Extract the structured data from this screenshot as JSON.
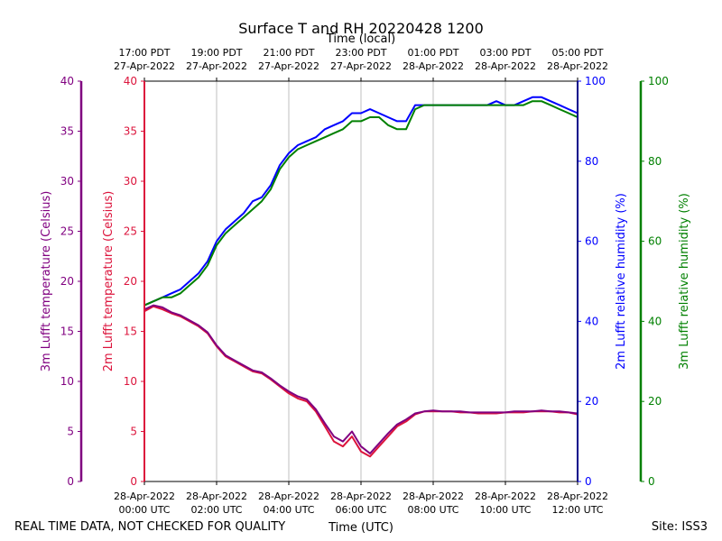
{
  "chart_data": {
    "type": "line",
    "title": "Surface T and RH 20220428 1200",
    "top_axis_label": "Time (local)",
    "xlabel": "Time (UTC)",
    "footer_left": "REAL TIME DATA, NOT CHECKED FOR QUALITY",
    "footer_right": "Site: ISS3",
    "x_range_hours_utc": [
      0,
      12
    ],
    "bottom_ticks": [
      {
        "hour": 0,
        "line1": "28-Apr-2022",
        "line2": "00:00 UTC"
      },
      {
        "hour": 2,
        "line1": "28-Apr-2022",
        "line2": "02:00 UTC"
      },
      {
        "hour": 4,
        "line1": "28-Apr-2022",
        "line2": "04:00 UTC"
      },
      {
        "hour": 6,
        "line1": "28-Apr-2022",
        "line2": "06:00 UTC"
      },
      {
        "hour": 8,
        "line1": "28-Apr-2022",
        "line2": "08:00 UTC"
      },
      {
        "hour": 10,
        "line1": "28-Apr-2022",
        "line2": "10:00 UTC"
      },
      {
        "hour": 12,
        "line1": "28-Apr-2022",
        "line2": "12:00 UTC"
      }
    ],
    "top_ticks": [
      {
        "hour": 0,
        "line1": "17:00 PDT",
        "line2": "27-Apr-2022"
      },
      {
        "hour": 2,
        "line1": "19:00 PDT",
        "line2": "27-Apr-2022"
      },
      {
        "hour": 4,
        "line1": "21:00 PDT",
        "line2": "27-Apr-2022"
      },
      {
        "hour": 6,
        "line1": "23:00 PDT",
        "line2": "27-Apr-2022"
      },
      {
        "hour": 8,
        "line1": "01:00 PDT",
        "line2": "28-Apr-2022"
      },
      {
        "hour": 10,
        "line1": "03:00 PDT",
        "line2": "28-Apr-2022"
      },
      {
        "hour": 12,
        "line1": "05:00 PDT",
        "line2": "28-Apr-2022"
      }
    ],
    "axes": {
      "t3m": {
        "label": "3m Lufft temperature (Celsius)",
        "range": [
          0,
          40
        ],
        "ticks": [
          "0",
          "5",
          "10",
          "15",
          "20",
          "25",
          "30",
          "35",
          "40"
        ],
        "color": "#800080"
      },
      "t2m": {
        "label": "2m Lufft temperature (Celsius)",
        "range": [
          0,
          40
        ],
        "ticks": [
          "0",
          "5",
          "10",
          "15",
          "20",
          "25",
          "30",
          "35",
          "40"
        ],
        "color": "#dc143c"
      },
      "rh2m": {
        "label": "2m Lufft relative humidity (%)",
        "range": [
          0,
          100
        ],
        "ticks": [
          "0",
          "20",
          "40",
          "60",
          "80",
          "100"
        ],
        "color": "#0000ff"
      },
      "rh3m": {
        "label": "3m Lufft relative humidity (%)",
        "range": [
          0,
          100
        ],
        "ticks": [
          "0",
          "20",
          "40",
          "60",
          "80",
          "100"
        ],
        "color": "#008000"
      }
    },
    "series": [
      {
        "name": "2m Lufft relative humidity",
        "axis": "rh2m",
        "color": "#0000ff",
        "x": [
          0,
          0.25,
          0.5,
          0.75,
          1,
          1.25,
          1.5,
          1.75,
          2,
          2.25,
          2.5,
          2.75,
          3,
          3.25,
          3.5,
          3.75,
          4,
          4.25,
          4.5,
          4.75,
          5,
          5.25,
          5.5,
          5.75,
          6,
          6.25,
          6.5,
          6.75,
          7,
          7.25,
          7.5,
          7.75,
          8,
          8.25,
          8.5,
          8.75,
          9,
          9.25,
          9.5,
          9.75,
          10,
          10.25,
          10.5,
          10.75,
          11,
          11.25,
          11.5,
          11.75,
          12
        ],
        "y": [
          44,
          45,
          46,
          47,
          48,
          50,
          52,
          55,
          60,
          63,
          65,
          67,
          70,
          71,
          74,
          79,
          82,
          84,
          85,
          86,
          88,
          89,
          90,
          92,
          92,
          93,
          92,
          91,
          90,
          90,
          94,
          94,
          94,
          94,
          94,
          94,
          94,
          94,
          94,
          95,
          94,
          94,
          95,
          96,
          96,
          95,
          94,
          93,
          92
        ]
      },
      {
        "name": "3m Lufft relative humidity",
        "axis": "rh3m",
        "color": "#008000",
        "x": [
          0,
          0.25,
          0.5,
          0.75,
          1,
          1.25,
          1.5,
          1.75,
          2,
          2.25,
          2.5,
          2.75,
          3,
          3.25,
          3.5,
          3.75,
          4,
          4.25,
          4.5,
          4.75,
          5,
          5.25,
          5.5,
          5.75,
          6,
          6.25,
          6.5,
          6.75,
          7,
          7.25,
          7.5,
          7.75,
          8,
          8.25,
          8.5,
          8.75,
          9,
          9.25,
          9.5,
          9.75,
          10,
          10.25,
          10.5,
          10.75,
          11,
          11.25,
          11.5,
          11.75,
          12
        ],
        "y": [
          44,
          45,
          46,
          46,
          47,
          49,
          51,
          54,
          59,
          62,
          64,
          66,
          68,
          70,
          73,
          78,
          81,
          83,
          84,
          85,
          86,
          87,
          88,
          90,
          90,
          91,
          91,
          89,
          88,
          88,
          93,
          94,
          94,
          94,
          94,
          94,
          94,
          94,
          94,
          94,
          94,
          94,
          94,
          95,
          95,
          94,
          93,
          92,
          91
        ]
      },
      {
        "name": "2m Lufft temperature",
        "axis": "t2m",
        "color": "#dc143c",
        "x": [
          0,
          0.25,
          0.5,
          0.75,
          1,
          1.25,
          1.5,
          1.75,
          2,
          2.25,
          2.5,
          2.75,
          3,
          3.25,
          3.5,
          3.75,
          4,
          4.25,
          4.5,
          4.75,
          5,
          5.25,
          5.5,
          5.75,
          6,
          6.25,
          6.5,
          6.75,
          7,
          7.25,
          7.5,
          7.75,
          8,
          8.25,
          8.5,
          8.75,
          9,
          9.25,
          9.5,
          9.75,
          10,
          10.25,
          10.5,
          10.75,
          11,
          11.25,
          11.5,
          11.75,
          12
        ],
        "y": [
          17,
          17.5,
          17.2,
          16.8,
          16.5,
          16,
          15.5,
          14.8,
          13.5,
          12.5,
          12,
          11.5,
          11,
          10.8,
          10.2,
          9.5,
          8.8,
          8.3,
          8,
          7,
          5.5,
          4,
          3.5,
          4.5,
          3,
          2.5,
          3.5,
          4.5,
          5.5,
          6,
          6.7,
          7,
          7,
          7,
          7,
          6.9,
          6.9,
          6.8,
          6.8,
          6.8,
          6.9,
          6.9,
          6.9,
          7,
          7,
          7,
          6.9,
          6.9,
          6.7
        ]
      },
      {
        "name": "3m Lufft temperature",
        "axis": "t3m",
        "color": "#800080",
        "x": [
          0,
          0.25,
          0.5,
          0.75,
          1,
          1.25,
          1.5,
          1.75,
          2,
          2.25,
          2.5,
          2.75,
          3,
          3.25,
          3.5,
          3.75,
          4,
          4.25,
          4.5,
          4.75,
          5,
          5.25,
          5.5,
          5.75,
          6,
          6.25,
          6.5,
          6.75,
          7,
          7.25,
          7.5,
          7.75,
          8,
          8.25,
          8.5,
          8.75,
          9,
          9.25,
          9.5,
          9.75,
          10,
          10.25,
          10.5,
          10.75,
          11,
          11.25,
          11.5,
          11.75,
          12
        ],
        "y": [
          17.2,
          17.6,
          17.4,
          16.9,
          16.6,
          16.1,
          15.6,
          14.9,
          13.6,
          12.6,
          12.1,
          11.6,
          11.1,
          10.9,
          10.3,
          9.6,
          9,
          8.5,
          8.2,
          7.2,
          5.8,
          4.5,
          4,
          5,
          3.5,
          2.8,
          3.8,
          4.8,
          5.7,
          6.2,
          6.8,
          7,
          7.1,
          7,
          7,
          7,
          6.9,
          6.9,
          6.9,
          6.9,
          6.9,
          7,
          7,
          7,
          7.1,
          7,
          7,
          6.9,
          6.8
        ]
      }
    ]
  }
}
